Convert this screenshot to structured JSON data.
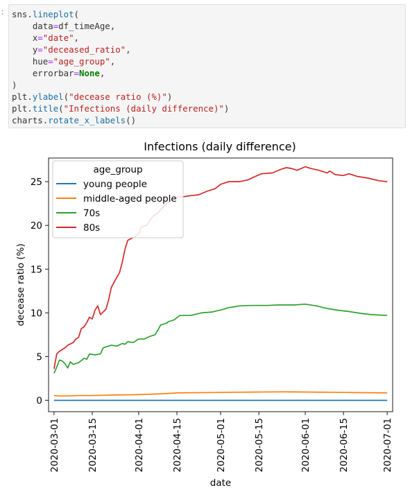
{
  "cell": {
    "prompt": ":",
    "code": {
      "line1_obj": "sns",
      "line1_fn": "lineplot",
      "data_kw": "data",
      "data_val": "df_timeAge",
      "x_kw": "x",
      "x_val": "\"date\"",
      "y_kw": "y",
      "y_val": "\"deceased_ratio\"",
      "hue_kw": "hue",
      "hue_val": "\"age_group\"",
      "errorbar_kw": "errorbar",
      "errorbar_val": "None",
      "close_paren": ")",
      "ylabel_obj": "plt",
      "ylabel_fn": "ylabel",
      "ylabel_arg": "\"decease ratio (%)\"",
      "title_obj": "plt",
      "title_fn": "title",
      "title_arg": "\"Infections (daily difference)\"",
      "rotate_obj": "charts",
      "rotate_fn": "rotate_x_labels"
    }
  },
  "chart_data": {
    "type": "line",
    "title": "Infections (daily difference)",
    "xlabel": "date",
    "ylabel": "decease ratio (%)",
    "x_range": [
      "2020-02-28",
      "2020-07-03"
    ],
    "ylim": [
      -1.3,
      27.7
    ],
    "y_ticks": [
      0,
      5,
      10,
      15,
      20,
      25
    ],
    "x_ticks": [
      "2020-03-01",
      "2020-03-15",
      "2020-04-01",
      "2020-04-15",
      "2020-05-01",
      "2020-05-15",
      "2020-06-01",
      "2020-06-15",
      "2020-07-01"
    ],
    "grid": false,
    "legend": {
      "title": "age_group",
      "location": "top-left"
    },
    "series": [
      {
        "name": "young people",
        "color": "#1f77b4",
        "points": [
          [
            "2020-03-01",
            0
          ],
          [
            "2020-07-01",
            0
          ]
        ]
      },
      {
        "name": "middle-aged people",
        "color": "#ff7f0e",
        "points": [
          [
            "2020-03-01",
            0.55
          ],
          [
            "2020-03-03",
            0.5
          ],
          [
            "2020-03-06",
            0.5
          ],
          [
            "2020-03-10",
            0.55
          ],
          [
            "2020-03-15",
            0.55
          ],
          [
            "2020-03-22",
            0.6
          ],
          [
            "2020-04-01",
            0.65
          ],
          [
            "2020-04-10",
            0.75
          ],
          [
            "2020-04-15",
            0.85
          ],
          [
            "2020-05-01",
            0.9
          ],
          [
            "2020-05-15",
            0.95
          ],
          [
            "2020-05-25",
            0.97
          ],
          [
            "2020-06-01",
            0.95
          ],
          [
            "2020-06-15",
            0.9
          ],
          [
            "2020-07-01",
            0.85
          ]
        ]
      },
      {
        "name": "70s",
        "color": "#2ca02c",
        "points": [
          [
            "2020-03-01",
            3.1
          ],
          [
            "2020-03-02",
            3.8
          ],
          [
            "2020-03-03",
            4.6
          ],
          [
            "2020-03-04",
            4.5
          ],
          [
            "2020-03-05",
            4.2
          ],
          [
            "2020-03-06",
            3.7
          ],
          [
            "2020-03-07",
            4.4
          ],
          [
            "2020-03-08",
            4.1
          ],
          [
            "2020-03-10",
            4.3
          ],
          [
            "2020-03-12",
            4.8
          ],
          [
            "2020-03-13",
            4.7
          ],
          [
            "2020-03-14",
            5.3
          ],
          [
            "2020-03-16",
            5.2
          ],
          [
            "2020-03-18",
            5.3
          ],
          [
            "2020-03-19",
            6.0
          ],
          [
            "2020-03-20",
            6.1
          ],
          [
            "2020-03-22",
            6.3
          ],
          [
            "2020-03-24",
            6.2
          ],
          [
            "2020-03-26",
            6.5
          ],
          [
            "2020-03-27",
            6.4
          ],
          [
            "2020-03-28",
            6.7
          ],
          [
            "2020-03-30",
            6.6
          ],
          [
            "2020-04-01",
            7.0
          ],
          [
            "2020-04-03",
            7.0
          ],
          [
            "2020-04-05",
            7.3
          ],
          [
            "2020-04-07",
            7.5
          ],
          [
            "2020-04-08",
            8.0
          ],
          [
            "2020-04-09",
            8.6
          ],
          [
            "2020-04-11",
            8.8
          ],
          [
            "2020-04-12",
            9.0
          ],
          [
            "2020-04-14",
            9.2
          ],
          [
            "2020-04-16",
            9.7
          ],
          [
            "2020-04-20",
            9.7
          ],
          [
            "2020-04-24",
            10.0
          ],
          [
            "2020-04-28",
            10.1
          ],
          [
            "2020-05-02",
            10.4
          ],
          [
            "2020-05-04",
            10.6
          ],
          [
            "2020-05-06",
            10.7
          ],
          [
            "2020-05-08",
            10.8
          ],
          [
            "2020-05-12",
            10.85
          ],
          [
            "2020-05-18",
            10.85
          ],
          [
            "2020-05-22",
            10.9
          ],
          [
            "2020-05-28",
            10.9
          ],
          [
            "2020-06-01",
            11.0
          ],
          [
            "2020-06-05",
            10.8
          ],
          [
            "2020-06-09",
            10.5
          ],
          [
            "2020-06-13",
            10.3
          ],
          [
            "2020-06-17",
            10.15
          ],
          [
            "2020-06-21",
            9.95
          ],
          [
            "2020-06-25",
            9.8
          ],
          [
            "2020-06-28",
            9.75
          ],
          [
            "2020-07-01",
            9.7
          ]
        ]
      },
      {
        "name": "80s",
        "color": "#d62728",
        "points": [
          [
            "2020-03-01",
            3.6
          ],
          [
            "2020-03-02",
            5.3
          ],
          [
            "2020-03-03",
            5.6
          ],
          [
            "2020-03-05",
            6.0
          ],
          [
            "2020-03-06",
            6.3
          ],
          [
            "2020-03-08",
            6.6
          ],
          [
            "2020-03-09",
            7.0
          ],
          [
            "2020-03-10",
            7.2
          ],
          [
            "2020-03-11",
            8.2
          ],
          [
            "2020-03-12",
            8.4
          ],
          [
            "2020-03-13",
            8.9
          ],
          [
            "2020-03-14",
            9.5
          ],
          [
            "2020-03-15",
            9.3
          ],
          [
            "2020-03-16",
            10.3
          ],
          [
            "2020-03-17",
            10.8
          ],
          [
            "2020-03-18",
            9.8
          ],
          [
            "2020-03-20",
            10.4
          ],
          [
            "2020-03-21",
            11.5
          ],
          [
            "2020-03-22",
            12.9
          ],
          [
            "2020-03-23",
            13.5
          ],
          [
            "2020-03-25",
            14.6
          ],
          [
            "2020-03-26",
            15.8
          ],
          [
            "2020-03-27",
            17.3
          ],
          [
            "2020-03-28",
            18.3
          ],
          [
            "2020-03-30",
            18.6
          ],
          [
            "2020-04-01",
            19.0
          ],
          [
            "2020-04-02",
            19.8
          ],
          [
            "2020-04-04",
            20.0
          ],
          [
            "2020-04-05",
            20.5
          ],
          [
            "2020-04-06",
            21.0
          ],
          [
            "2020-04-08",
            21.4
          ],
          [
            "2020-04-09",
            21.8
          ],
          [
            "2020-04-11",
            22.4
          ],
          [
            "2020-04-13",
            22.9
          ],
          [
            "2020-04-15",
            23.2
          ],
          [
            "2020-04-18",
            23.3
          ],
          [
            "2020-04-20",
            23.4
          ],
          [
            "2020-04-23",
            23.5
          ],
          [
            "2020-04-26",
            23.9
          ],
          [
            "2020-04-29",
            24.2
          ],
          [
            "2020-05-01",
            24.7
          ],
          [
            "2020-05-04",
            25.0
          ],
          [
            "2020-05-08",
            25.0
          ],
          [
            "2020-05-11",
            25.2
          ],
          [
            "2020-05-13",
            25.5
          ],
          [
            "2020-05-16",
            25.9
          ],
          [
            "2020-05-20",
            26.0
          ],
          [
            "2020-05-23",
            26.4
          ],
          [
            "2020-05-25",
            26.6
          ],
          [
            "2020-05-27",
            26.5
          ],
          [
            "2020-05-29",
            26.3
          ],
          [
            "2020-06-01",
            26.7
          ],
          [
            "2020-06-03",
            26.5
          ],
          [
            "2020-06-06",
            26.3
          ],
          [
            "2020-06-09",
            26.0
          ],
          [
            "2020-06-10",
            26.2
          ],
          [
            "2020-06-12",
            25.8
          ],
          [
            "2020-06-15",
            25.7
          ],
          [
            "2020-06-17",
            25.9
          ],
          [
            "2020-06-20",
            25.6
          ],
          [
            "2020-06-24",
            25.4
          ],
          [
            "2020-06-28",
            25.1
          ],
          [
            "2020-07-01",
            25.0
          ]
        ]
      }
    ]
  }
}
